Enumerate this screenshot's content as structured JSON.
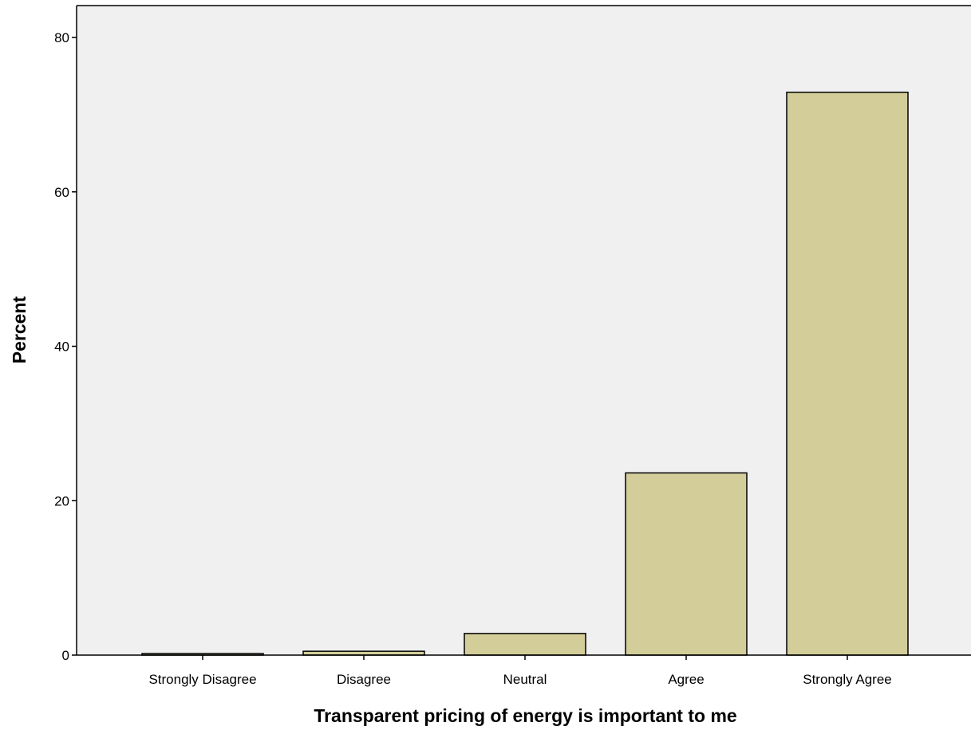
{
  "chart_data": {
    "type": "bar",
    "categories": [
      "Strongly Disagree",
      "Disagree",
      "Neutral",
      "Agree",
      "Strongly Agree"
    ],
    "values": [
      0.2,
      0.5,
      2.8,
      23.6,
      72.9
    ],
    "title": "",
    "xlabel": "Transparent pricing of energy is important to me",
    "ylabel": "Percent",
    "ylim": [
      0,
      80
    ],
    "yticks": [
      0,
      20,
      40,
      60,
      80
    ],
    "ytick_labels": [
      "0",
      "20",
      "40",
      "60",
      "80"
    ],
    "grid": false,
    "legend": "none",
    "colors": {
      "plot_background": "#f0f0f0",
      "bar_fill": "#d3cd99",
      "bar_stroke": "#000000",
      "axis": "#000000"
    }
  }
}
